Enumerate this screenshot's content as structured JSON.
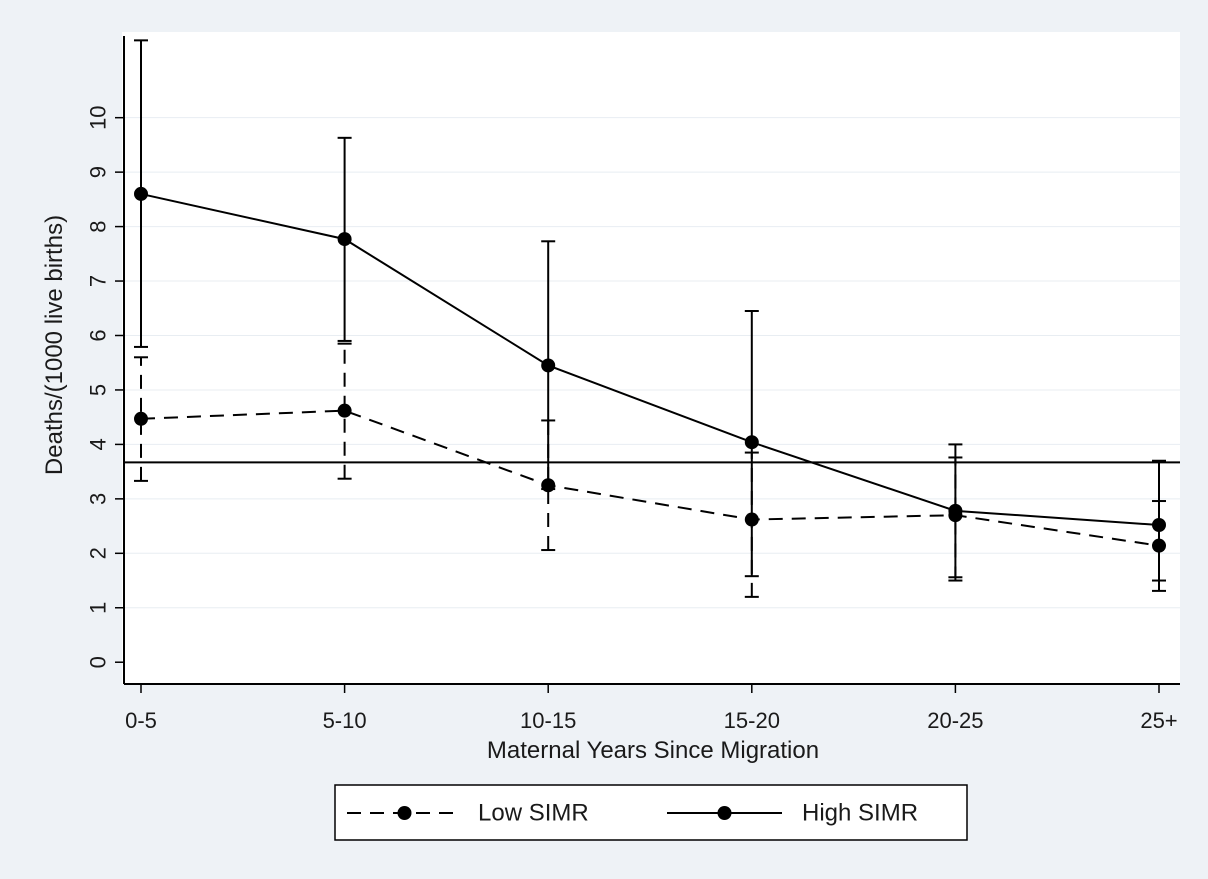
{
  "chart_data": {
    "type": "line",
    "xlabel": "Maternal Years Since Migration",
    "ylabel": "Deaths/(1000 live births)",
    "categories": [
      "0-5",
      "5-10",
      "10-15",
      "15-20",
      "20-25",
      "25+"
    ],
    "yticks": [
      0,
      1,
      2,
      3,
      4,
      5,
      6,
      7,
      8,
      9,
      10
    ],
    "ylim": [
      -0.4,
      11.5
    ],
    "grid": true,
    "reference_line": 3.67,
    "legend_position": "bottom",
    "series": [
      {
        "name": "Low SIMR",
        "style": "dashed",
        "values": [
          4.47,
          4.62,
          3.25,
          2.62,
          2.7,
          2.14
        ],
        "ci_low": [
          3.33,
          3.37,
          2.06,
          1.2,
          1.5,
          1.31
        ],
        "ci_high": [
          5.6,
          5.85,
          4.44,
          3.85,
          3.76,
          2.96
        ]
      },
      {
        "name": "High SIMR",
        "style": "solid",
        "values": [
          8.6,
          7.77,
          5.45,
          4.04,
          2.78,
          2.52
        ],
        "ci_low": [
          5.79,
          5.9,
          3.18,
          1.58,
          1.56,
          1.5
        ],
        "ci_high": [
          11.42,
          9.63,
          7.73,
          6.45,
          4.0,
          3.7
        ]
      }
    ],
    "colors": {
      "line": "#000000",
      "plot_bg": "#ffffff",
      "page_bg": "#eef2f6",
      "grid": "#e8edf2"
    }
  }
}
